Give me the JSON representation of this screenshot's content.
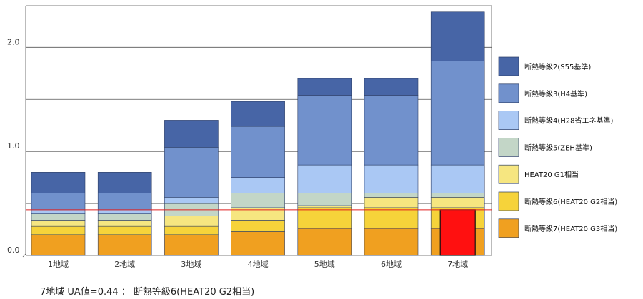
{
  "chart_data": {
    "type": "bar",
    "stacked": true,
    "categories": [
      "1地域",
      "2地域",
      "3地域",
      "4地域",
      "5地域",
      "6地域",
      "7地域"
    ],
    "ylim": [
      0,
      2.4
    ],
    "yticks": [
      {
        "value": 0,
        "label": "0.0"
      },
      {
        "value": 1,
        "label": "1.0"
      },
      {
        "value": 2,
        "label": "2.0"
      }
    ],
    "gridlines": [
      0.5,
      1.0,
      1.5,
      2.0,
      2.4
    ],
    "series": [
      {
        "name": "断熱等級7(HEAT20 G3相当)",
        "color": "#f0a020",
        "values": [
          0.2,
          0.2,
          0.2,
          0.23,
          0.26,
          0.26,
          0.26
        ]
      },
      {
        "name": "断熱等級6(HEAT20 G2相当)",
        "color": "#f6d33a",
        "values": [
          0.08,
          0.08,
          0.08,
          0.11,
          0.2,
          0.2,
          0.2
        ]
      },
      {
        "name": "HEAT20 G1相当",
        "color": "#f6e680",
        "values": [
          0.06,
          0.06,
          0.1,
          0.12,
          0.02,
          0.1,
          0.1
        ]
      },
      {
        "name": "断熱等級5(ZEH基準)",
        "color": "#c3d6c7",
        "values": [
          0.06,
          0.06,
          0.12,
          0.14,
          0.12,
          0.04,
          0.04
        ]
      },
      {
        "name": "断熱等級4(H28省エネ基準)",
        "color": "#aac8f4",
        "values": [
          0.04,
          0.04,
          0.06,
          0.15,
          0.27,
          0.27,
          0.27
        ]
      },
      {
        "name": "断熱等級3(H4基準)",
        "color": "#7191cc",
        "values": [
          0.16,
          0.16,
          0.48,
          0.49,
          0.67,
          0.67,
          1.0
        ]
      },
      {
        "name": "断熱等級2(S55基準)",
        "color": "#4765a6",
        "values": [
          0.2,
          0.2,
          0.26,
          0.24,
          0.16,
          0.16,
          0.47
        ]
      }
    ],
    "legend": [
      {
        "label": "断熱等級2(S55基準)",
        "color": "#4765a6"
      },
      {
        "label": "断熱等級3(H4基準)",
        "color": "#7191cc"
      },
      {
        "label": "断熱等級4(H28省エネ基準)",
        "color": "#aac8f4"
      },
      {
        "label": "断熱等級5(ZEH基準)",
        "color": "#c3d6c7"
      },
      {
        "label": "HEAT20 G1相当",
        "color": "#f6e680"
      },
      {
        "label": "断熱等級6(HEAT20 G2相当)",
        "color": "#f6d33a"
      },
      {
        "label": "断熱等級7(HEAT20 G3相当)",
        "color": "#f0a020"
      }
    ],
    "reference_line": {
      "value": 0.44,
      "color": "#e02020"
    },
    "highlight": {
      "category": "7地域",
      "value": 0.44,
      "color": "#ff1010"
    }
  },
  "caption": "7地域 UA値=0.44 ：  断熱等級6(HEAT20 G2相当)"
}
